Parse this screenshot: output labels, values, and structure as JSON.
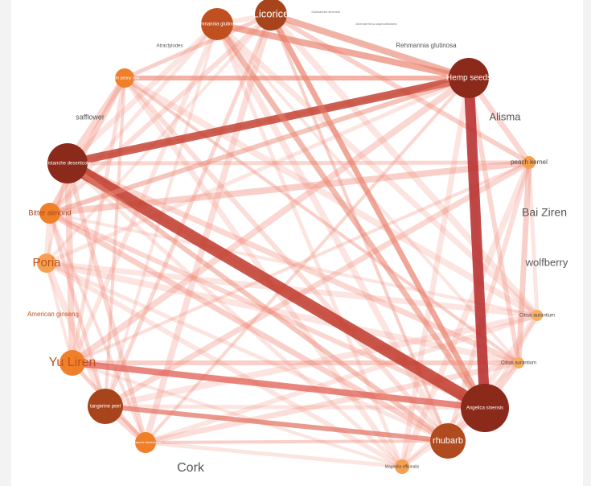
{
  "nodes": [
    {
      "label": "Rehmannia glutinosa"
    },
    {
      "label": "Licorice"
    },
    {
      "label": "Schisandra sinensis"
    },
    {
      "label": "Anemarrhena asphodeloides"
    },
    {
      "label": "Rehmannia glutinosa"
    },
    {
      "label": "Hemp seeds"
    },
    {
      "label": "Alisma"
    },
    {
      "label": "peach kernel"
    },
    {
      "label": "Bai Ziren"
    },
    {
      "label": "wolfberry"
    },
    {
      "label": "Citrus aurantium"
    },
    {
      "label": "Citrus aurantium"
    },
    {
      "label": "Angelica sinensis"
    },
    {
      "label": "rhubarb"
    },
    {
      "label": "Magnolia officinalis"
    },
    {
      "label": "Cork"
    },
    {
      "label": "Cistanche deserticola"
    },
    {
      "label": "tangerine peel"
    },
    {
      "label": "Yu Liren"
    },
    {
      "label": "American ginseng"
    },
    {
      "label": "Poria"
    },
    {
      "label": "Bitter almond"
    },
    {
      "label": "Cistanche deserticola"
    },
    {
      "label": "safflower"
    },
    {
      "label": "white peony root"
    },
    {
      "label": "Atractylodes"
    }
  ]
}
